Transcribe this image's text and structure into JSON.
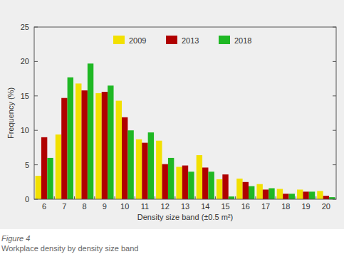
{
  "chart_data": {
    "type": "bar",
    "title": "Figure 4",
    "subtitle": "Workplace density by density size band",
    "x_label": "Density size band (±0.5 m²)",
    "y_label": "Frequency (%)",
    "categories": [
      "6",
      "7",
      "8",
      "9",
      "10",
      "11",
      "12",
      "13",
      "14",
      "15",
      "16",
      "17",
      "18",
      "19",
      "20"
    ],
    "series": [
      {
        "name": "2009",
        "color": "#f2e000",
        "values": [
          3.4,
          9.4,
          16.8,
          15.4,
          14.3,
          8.7,
          8.5,
          4.7,
          6.4,
          2.9,
          3.0,
          2.2,
          1.5,
          1.4,
          1.2
        ]
      },
      {
        "name": "2013",
        "color": "#b00000",
        "values": [
          9.0,
          14.7,
          15.8,
          15.6,
          11.9,
          8.2,
          5.1,
          4.9,
          4.6,
          3.6,
          2.5,
          1.4,
          0.8,
          1.1,
          0.5
        ]
      },
      {
        "name": "2018",
        "color": "#1fb824",
        "values": [
          6.0,
          17.7,
          19.7,
          16.5,
          10.0,
          9.7,
          6.0,
          4.0,
          4.0,
          0.4,
          1.9,
          1.6,
          0.8,
          1.1,
          0.3
        ]
      }
    ],
    "ylim": [
      0,
      25
    ],
    "yticks": [
      0,
      5,
      10,
      15,
      20,
      25
    ],
    "grid": false,
    "legend": "top"
  }
}
